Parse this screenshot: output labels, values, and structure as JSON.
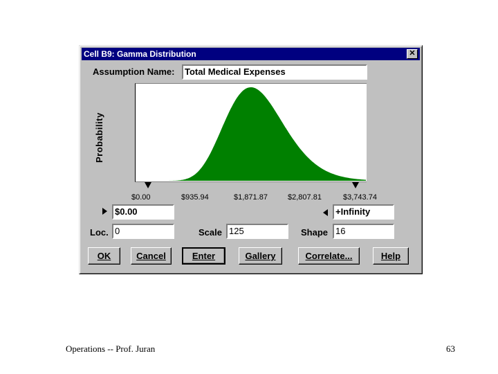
{
  "window": {
    "title": "Cell B9:  Gamma Distribution",
    "close_label": "✕"
  },
  "assumption": {
    "label": "Assumption Name:",
    "value": "Total Medical Expenses"
  },
  "chart": {
    "ylabel": "Probability",
    "fill_color": "#008000",
    "ticks": [
      "$0.00",
      "$935.94",
      "$1,871.87",
      "$2,807.81",
      "$3,743.74"
    ]
  },
  "bounds": {
    "lower": "$0.00",
    "upper": "+Infinity"
  },
  "params": {
    "loc_label": "Loc.",
    "loc_value": "0",
    "scale_label": "Scale",
    "scale_value": "125",
    "shape_label": "Shape",
    "shape_value": "16"
  },
  "buttons": {
    "ok": "OK",
    "cancel": "Cancel",
    "enter": "Enter",
    "gallery": "Gallery",
    "correlate": "Correlate...",
    "help": "Help"
  },
  "footer": {
    "left": "Operations  --  Prof. Juran",
    "right": "63"
  }
}
